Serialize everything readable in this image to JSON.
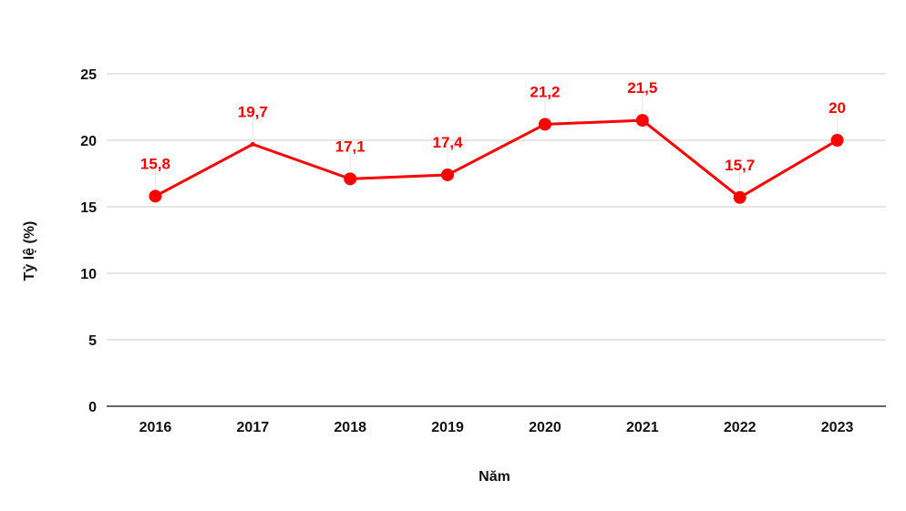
{
  "chart_data": {
    "type": "line",
    "title": "",
    "xlabel": "Năm",
    "ylabel": "Tỷ lệ (%)",
    "categories": [
      "2016",
      "2017",
      "2018",
      "2019",
      "2020",
      "2021",
      "2022",
      "2023"
    ],
    "series": [
      {
        "values": [
          15.8,
          19.7,
          17.1,
          17.4,
          21.2,
          21.5,
          15.7,
          20
        ],
        "data_labels": [
          "15,8",
          "19,7",
          "17,1",
          "17,4",
          "21,2",
          "21,5",
          "15,7",
          "20"
        ],
        "color": "#ff0000",
        "marker_visible": [
          true,
          false,
          true,
          true,
          true,
          true,
          true,
          true
        ]
      }
    ],
    "ylim": [
      0,
      25
    ],
    "yticks": [
      0,
      5,
      10,
      15,
      20,
      25
    ],
    "ytick_labels": [
      "0",
      "5",
      "10",
      "15",
      "20",
      "25"
    ],
    "grid": true,
    "legend": "none",
    "colors": {
      "series": "#ff0000",
      "grid": "#cccccc",
      "axis": "#333333",
      "text": "#111111"
    }
  }
}
